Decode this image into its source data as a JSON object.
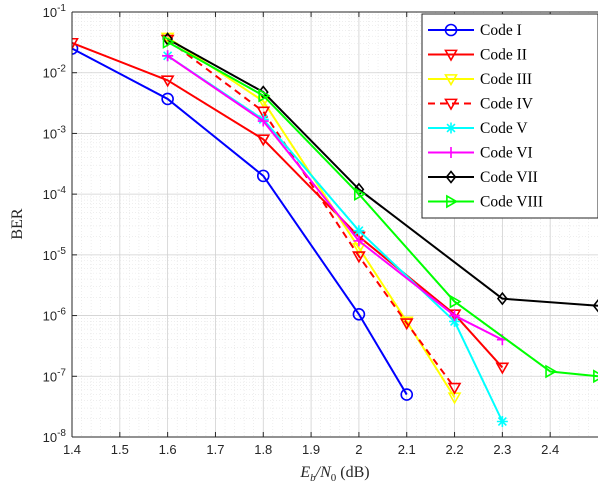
{
  "chart_data": {
    "type": "line",
    "xlabel": {
      "base": "E",
      "num_sub": "b",
      "sep": "/N",
      "den_sub": "0",
      "unit": " (dB)"
    },
    "ylabel": "BER",
    "xlim": [
      1.4,
      2.5
    ],
    "ylim": [
      1e-08,
      0.1
    ],
    "yscale": "log",
    "grid": true,
    "legend_position": "top-right",
    "x_ticks": [
      1.4,
      1.5,
      1.6,
      1.7,
      1.8,
      1.9,
      2.0,
      2.1,
      2.2,
      2.3,
      2.4
    ],
    "x_tick_labels": [
      "1.4",
      "1.5",
      "1.6",
      "1.7",
      "1.8",
      "1.9",
      "2",
      "2.1",
      "2.2",
      "2.3",
      "2.4"
    ],
    "y_ticks": [
      {
        "value": 1e-08,
        "base": "10",
        "exp": "-8"
      },
      {
        "value": 1e-07,
        "base": "10",
        "exp": "-7"
      },
      {
        "value": 1e-06,
        "base": "10",
        "exp": "-6"
      },
      {
        "value": 1e-05,
        "base": "10",
        "exp": "-5"
      },
      {
        "value": 0.0001,
        "base": "10",
        "exp": "-4"
      },
      {
        "value": 0.001,
        "base": "10",
        "exp": "-3"
      },
      {
        "value": 0.01,
        "base": "10",
        "exp": "-2"
      },
      {
        "value": 0.1,
        "base": "10",
        "exp": "-1"
      }
    ],
    "series": [
      {
        "name": "Code I",
        "color": "#0000ff",
        "marker": "circle",
        "dash": "solid",
        "x": [
          1.4,
          1.6,
          1.8,
          2.0,
          2.1
        ],
        "y": [
          0.025,
          0.0037,
          0.0002,
          1.05e-06,
          5e-08
        ]
      },
      {
        "name": "Code II",
        "color": "#ff0000",
        "marker": "triangle-down",
        "dash": "solid",
        "x": [
          1.4,
          1.6,
          1.8,
          2.0,
          2.2,
          2.3
        ],
        "y": [
          0.031,
          0.0075,
          0.0008,
          2e-05,
          1.05e-06,
          1.4e-07
        ]
      },
      {
        "name": "Code III",
        "color": "#ffff00",
        "marker": "triangle-down",
        "dash": "solid",
        "x": [
          1.6,
          1.8,
          2.0,
          2.1,
          2.2
        ],
        "y": [
          0.038,
          0.0034,
          1.3e-05,
          8e-07,
          4.5e-08
        ]
      },
      {
        "name": "Code IV",
        "color": "#ff0000",
        "marker": "triangle-down",
        "dash": "dashed",
        "x": [
          1.6,
          1.8,
          2.0,
          2.1,
          2.2
        ],
        "y": [
          0.035,
          0.0023,
          9.5e-06,
          7.5e-07,
          6.5e-08
        ]
      },
      {
        "name": "Code V",
        "color": "#00ffff",
        "marker": "asterisk",
        "dash": "solid",
        "x": [
          1.6,
          1.8,
          2.0,
          2.2,
          2.3
        ],
        "y": [
          0.019,
          0.0017,
          2.5e-05,
          8e-07,
          1.8e-08
        ]
      },
      {
        "name": "Code VI",
        "color": "#ff00ff",
        "marker": "plus",
        "dash": "solid",
        "x": [
          1.6,
          1.8,
          2.0,
          2.2,
          2.3
        ],
        "y": [
          0.019,
          0.0016,
          1.7e-05,
          1e-06,
          4e-07
        ]
      },
      {
        "name": "Code VII",
        "color": "#000000",
        "marker": "diamond",
        "dash": "solid",
        "x": [
          1.6,
          1.8,
          2.0,
          2.3,
          2.5
        ],
        "y": [
          0.036,
          0.0048,
          0.00012,
          1.9e-06,
          1.45e-06
        ]
      },
      {
        "name": "Code VIII",
        "color": "#00ff00",
        "marker": "triangle-right",
        "dash": "solid",
        "x": [
          1.6,
          1.8,
          2.0,
          2.2,
          2.4,
          2.5
        ],
        "y": [
          0.032,
          0.0042,
          0.0001,
          1.7e-06,
          1.2e-07,
          1e-07
        ]
      }
    ]
  }
}
